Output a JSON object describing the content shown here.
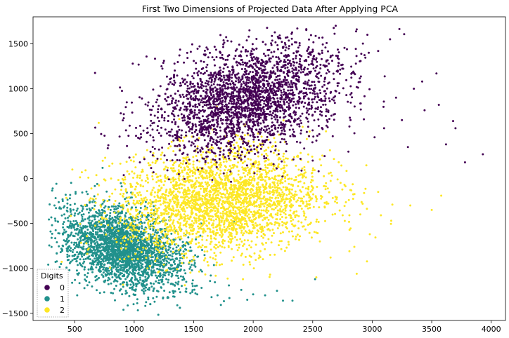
{
  "chart_data": {
    "type": "scatter",
    "title": "First Two Dimensions of Projected Data After Applying PCA",
    "xlabel": "",
    "ylabel": "",
    "xlim": [
      150,
      4120
    ],
    "ylim": [
      -1580,
      1800
    ],
    "x_ticks": [
      500,
      1000,
      1500,
      2000,
      2500,
      3000,
      3500,
      4000
    ],
    "y_ticks": [
      -1500,
      -1000,
      -500,
      0,
      500,
      1000,
      1500
    ],
    "grid": false,
    "legend": {
      "title": "Digits",
      "placement": "lower-left",
      "entries": [
        "0",
        "1",
        "2"
      ]
    },
    "colors": {
      "0": "#440154",
      "1": "#21918c",
      "2": "#fde725"
    },
    "series": [
      {
        "name": "0",
        "cluster": {
          "center": [
            1950,
            880
          ],
          "spread": [
            420,
            270
          ],
          "tilt_deg": 28,
          "count": 2600
        },
        "outliers": [
          [
            3930,
            270
          ],
          [
            3780,
            180
          ],
          [
            3700,
            560
          ],
          [
            3680,
            640
          ],
          [
            3620,
            380
          ],
          [
            3560,
            820
          ],
          [
            3540,
            1170
          ],
          [
            3440,
            760
          ],
          [
            3420,
            1080
          ],
          [
            3300,
            350
          ],
          [
            3200,
            900
          ],
          [
            3150,
            1550
          ],
          [
            3100,
            560
          ],
          [
            2960,
            1600
          ],
          [
            2870,
            1660
          ],
          [
            3050,
            1420
          ],
          [
            2600,
            250
          ],
          [
            2550,
            80
          ],
          [
            2500,
            200
          ],
          [
            3350,
            1000
          ],
          [
            3020,
            460
          ],
          [
            2800,
            300
          ],
          [
            3250,
            650
          ]
        ]
      },
      {
        "name": "1",
        "cluster": {
          "center": [
            900,
            -780
          ],
          "spread": [
            290,
            190
          ],
          "tilt_deg": -38,
          "count": 2600
        },
        "outliers": [
          [
            1800,
            -1330
          ],
          [
            1700,
            -1300
          ],
          [
            2000,
            -1290
          ],
          [
            2200,
            -1250
          ],
          [
            2330,
            -1360
          ],
          [
            2520,
            -1120
          ],
          [
            1900,
            -1240
          ],
          [
            2100,
            -1300
          ],
          [
            330,
            -300
          ],
          [
            400,
            -250
          ],
          [
            1650,
            -1320
          ],
          [
            2250,
            -1360
          ],
          [
            1950,
            -1350
          ],
          [
            1530,
            -1290
          ]
        ]
      },
      {
        "name": "2",
        "cluster": {
          "center": [
            1720,
            -250
          ],
          "spread": [
            430,
            290
          ],
          "tilt_deg": 10,
          "count": 2800
        },
        "outliers": [
          [
            3500,
            -350
          ],
          [
            3320,
            -300
          ],
          [
            3160,
            -470
          ],
          [
            2850,
            -760
          ],
          [
            2870,
            -1060
          ],
          [
            2650,
            -880
          ],
          [
            2530,
            -1100
          ],
          [
            2900,
            -400
          ],
          [
            480,
            100
          ],
          [
            560,
            70
          ],
          [
            2700,
            -230
          ],
          [
            2980,
            -620
          ],
          [
            3050,
            -150
          ]
        ]
      }
    ]
  }
}
